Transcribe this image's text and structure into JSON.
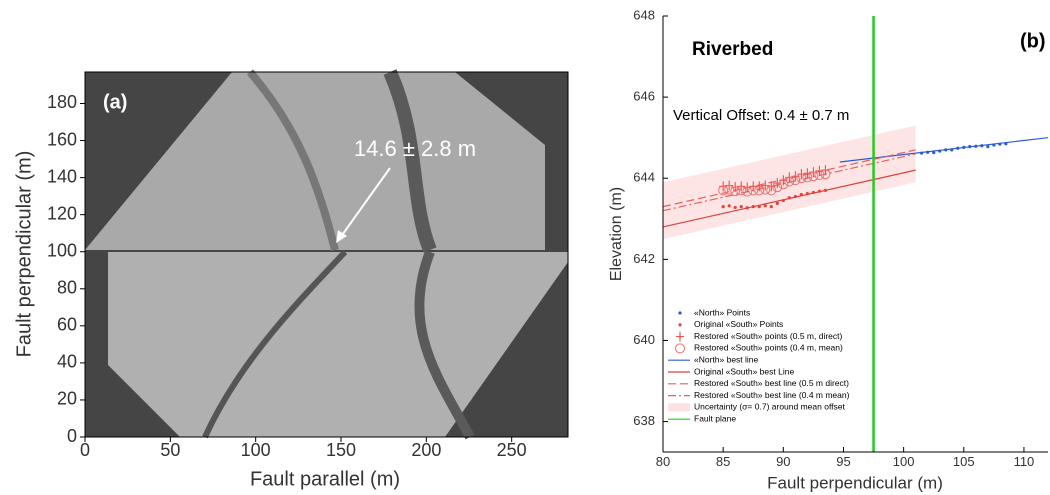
{
  "chart_data": [
    {
      "type": "image",
      "panel_label": "(a)",
      "xlabel": "Fault parallel (m)",
      "ylabel": "Fault perpendicular (m)",
      "annotation": "14.6 ± 2.8 m",
      "xlim": [
        0,
        283
      ],
      "xticks": [
        0,
        50,
        100,
        150,
        200,
        250
      ],
      "ylim": [
        0,
        197
      ],
      "yticks": [
        0,
        20,
        40,
        60,
        80,
        100,
        120,
        140,
        160,
        180
      ]
    },
    {
      "type": "scatter",
      "title": "Riverbed",
      "panel_label": "(b)",
      "annotation": "Vertical Offset: 0.4 ± 0.7 m",
      "xlabel": "Fault perpendicular (m)",
      "ylabel": "Elevation (m)",
      "xlim": [
        80,
        112
      ],
      "xticks": [
        80,
        85,
        90,
        95,
        100,
        105,
        110
      ],
      "ylim": [
        637.25,
        648
      ],
      "yticks": [
        638,
        640,
        642,
        644,
        646,
        648
      ],
      "series": [
        {
          "name": "«North» Points",
          "kind": "points",
          "marker": "dot",
          "color": "#2a5bd7",
          "x": [
            101.5,
            102,
            102.5,
            103,
            103.5,
            104,
            104.5,
            105,
            105.5,
            106,
            106.5,
            107,
            107.5,
            108,
            108.5
          ],
          "values": [
            644.62,
            644.64,
            644.63,
            644.67,
            644.7,
            644.7,
            644.74,
            644.76,
            644.78,
            644.79,
            644.8,
            644.78,
            644.82,
            644.84,
            644.85
          ]
        },
        {
          "name": "Original «South» Points",
          "kind": "points",
          "marker": "dot",
          "color": "#e8413c",
          "x": [
            85,
            85.5,
            86,
            86.5,
            87,
            87.5,
            88,
            88.5,
            89,
            89.5,
            90,
            90.5,
            91,
            91.5,
            92,
            92.5,
            93,
            93.5
          ],
          "values": [
            643.3,
            643.32,
            643.28,
            643.3,
            643.27,
            643.3,
            643.3,
            643.32,
            643.3,
            643.38,
            643.45,
            643.52,
            643.55,
            643.6,
            643.62,
            643.65,
            643.68,
            643.7
          ]
        },
        {
          "name": "Restored «South» points (0.5 m, direct)",
          "kind": "points",
          "marker": "plus",
          "color": "#e8413c",
          "x": [
            85,
            85.5,
            86,
            86.5,
            87,
            87.5,
            88,
            88.5,
            89,
            89.5,
            90,
            90.5,
            91,
            91.5,
            92,
            92.5,
            93,
            93.5
          ],
          "values": [
            643.8,
            643.82,
            643.78,
            643.8,
            643.77,
            643.8,
            643.8,
            643.82,
            643.8,
            643.88,
            643.95,
            644.02,
            644.05,
            644.1,
            644.12,
            644.15,
            644.18,
            644.2
          ]
        },
        {
          "name": "Restored «South» points (0.4 m, mean)",
          "kind": "points",
          "marker": "circle",
          "color": "#f07070",
          "x": [
            85,
            85.5,
            86,
            86.5,
            87,
            87.5,
            88,
            88.5,
            89,
            89.5,
            90,
            90.5,
            91,
            91.5,
            92,
            92.5,
            93,
            93.5
          ],
          "values": [
            643.7,
            643.72,
            643.68,
            643.7,
            643.67,
            643.7,
            643.7,
            643.72,
            643.7,
            643.78,
            643.85,
            643.92,
            643.95,
            644.0,
            644.02,
            644.05,
            644.08,
            644.1
          ]
        },
        {
          "name": "«North» best line",
          "kind": "line",
          "dash": "solid",
          "color": "#2a5bd7",
          "x": [
            94.7,
            112
          ],
          "values": [
            644.4,
            645.0
          ]
        },
        {
          "name": "Original «South» best Line",
          "kind": "line",
          "dash": "solid",
          "color": "#d9413a",
          "x": [
            80,
            101
          ],
          "values": [
            642.8,
            644.2
          ]
        },
        {
          "name": "Restored «South» best line (0.5 m direct)",
          "kind": "line",
          "dash": "dashed",
          "color": "#e86060",
          "x": [
            80,
            101
          ],
          "values": [
            643.3,
            644.7
          ]
        },
        {
          "name": "Restored «South» best line (0.4 m mean)",
          "kind": "line",
          "dash": "dashdot",
          "color": "#e86060",
          "x": [
            80,
            101
          ],
          "values": [
            643.2,
            644.6
          ]
        },
        {
          "name": "Uncertainty (σ= 0.7) around mean offset",
          "kind": "band",
          "color": "#fde0e0",
          "x": [
            80,
            101
          ],
          "lower": [
            642.5,
            643.9
          ],
          "upper": [
            643.9,
            645.3
          ]
        },
        {
          "name": "Fault plane",
          "kind": "vline",
          "color": "#22cc22",
          "x": 97.5
        }
      ]
    }
  ]
}
